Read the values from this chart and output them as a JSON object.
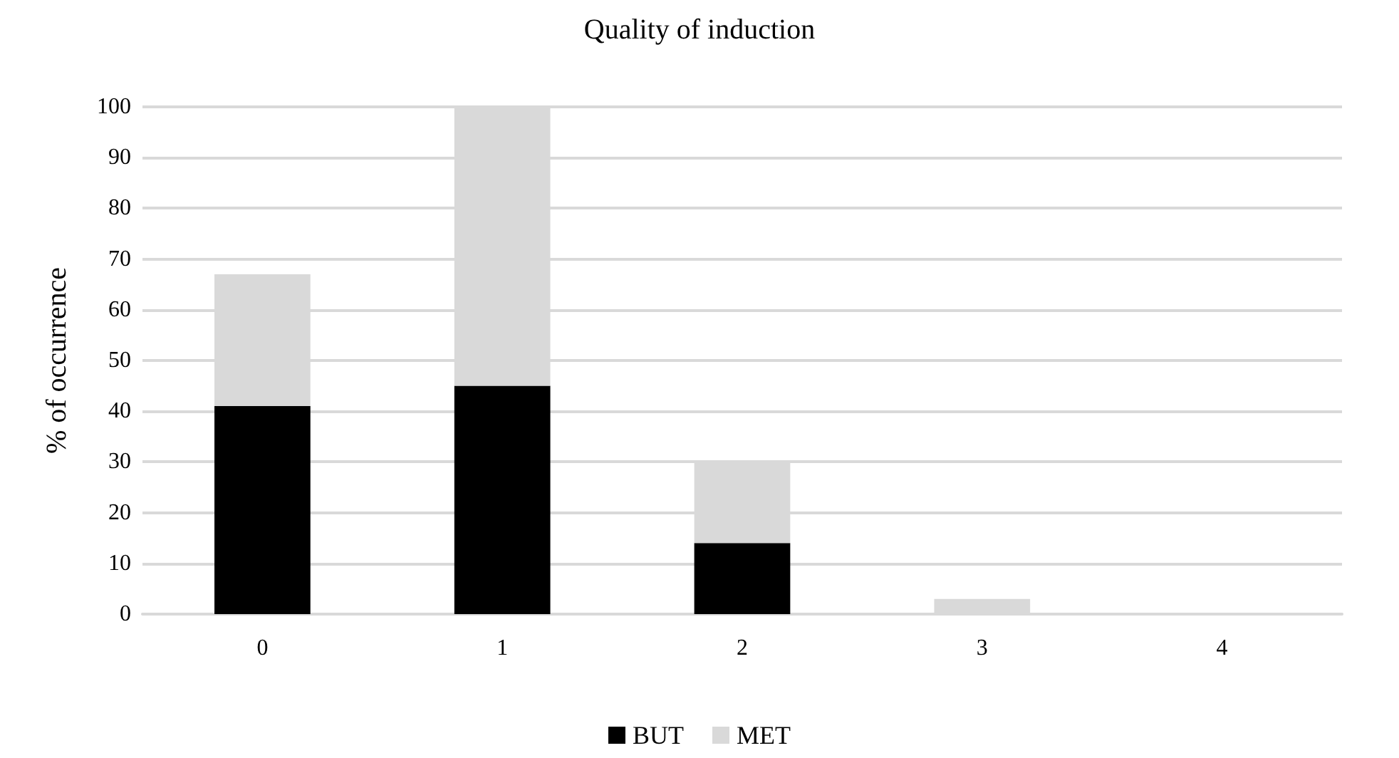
{
  "chart_data": {
    "type": "bar",
    "title": "Quality of induction",
    "ylabel": "% of occurrence",
    "categories": [
      "0",
      "1",
      "2",
      "3",
      "4"
    ],
    "stacked": true,
    "series": [
      {
        "name": "BUT",
        "color": "#000000",
        "values": [
          41,
          45,
          14,
          0,
          0
        ]
      },
      {
        "name": "MET",
        "color": "#d9d9d9",
        "values": [
          26,
          55,
          16,
          3,
          0
        ]
      }
    ],
    "ylim": [
      0,
      100
    ],
    "yticks": [
      0,
      10,
      20,
      30,
      40,
      50,
      60,
      70,
      80,
      90,
      100
    ],
    "grid": "y",
    "legend": "bottom"
  }
}
